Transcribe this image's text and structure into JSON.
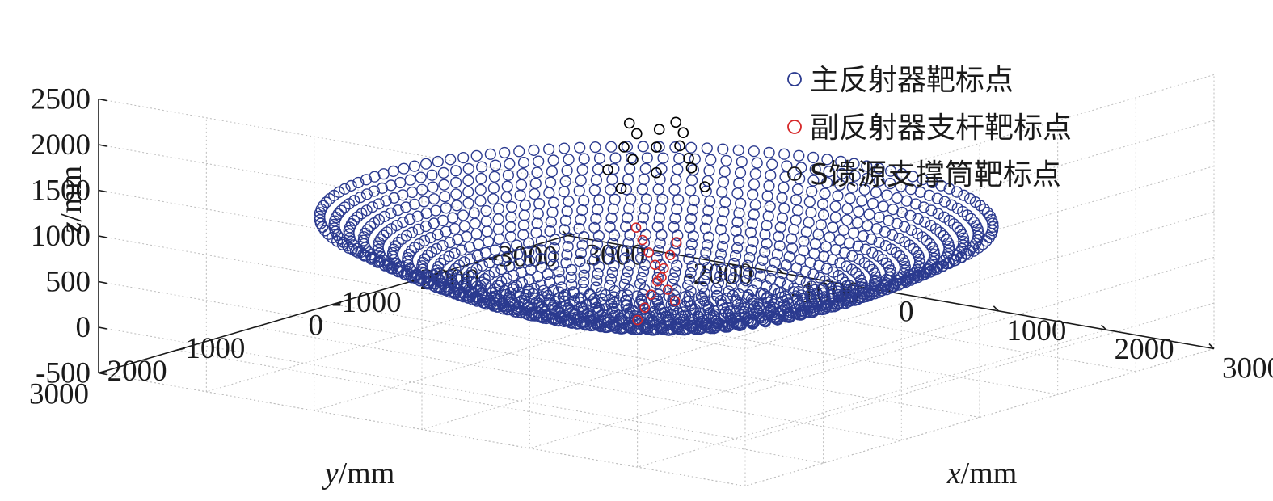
{
  "chart_data": {
    "type": "scatter3d",
    "xlabel": {
      "var": "x",
      "unit": "/mm"
    },
    "ylabel": {
      "var": "y",
      "unit": "/mm"
    },
    "zlabel": {
      "var": "z",
      "unit": "/mm"
    },
    "xlim": [
      -3000,
      3000
    ],
    "ylim": [
      -3000,
      3000
    ],
    "zlim": [
      -500,
      2500
    ],
    "x_ticks": [
      "-3000",
      "-2000",
      "-1000",
      "0",
      "1000",
      "2000",
      "3000"
    ],
    "y_ticks": [
      "-3000",
      "-2000",
      "-1000",
      "0",
      "1000",
      "2000",
      "3000"
    ],
    "z_ticks": [
      "-500",
      "0",
      "500",
      "1000",
      "1500",
      "2000",
      "2500"
    ],
    "grid": true,
    "legend_position": "top-right",
    "series": [
      {
        "name": "主反射器靶标点",
        "color": "#2b3a8f",
        "marker": "open-circle",
        "shape": "paraboloid-dish",
        "rim_radius": 2500,
        "vertex_z": 0,
        "rim_z": 1000,
        "rings": 23,
        "ring_spacing": 110
      },
      {
        "name": "副反射器支杆靶标点",
        "color": "#d62728",
        "marker": "open-circle",
        "points": [
          [
            -80,
            -350,
            50
          ],
          [
            -110,
            -300,
            180
          ],
          [
            -140,
            -260,
            320
          ],
          [
            -170,
            -220,
            460
          ],
          [
            -200,
            -180,
            600
          ],
          [
            -230,
            -140,
            740
          ],
          [
            -260,
            -100,
            880
          ],
          [
            80,
            350,
            50
          ],
          [
            110,
            300,
            180
          ],
          [
            140,
            260,
            320
          ],
          [
            170,
            220,
            460
          ],
          [
            200,
            180,
            600
          ],
          [
            230,
            140,
            740
          ],
          [
            260,
            100,
            880
          ]
        ]
      },
      {
        "name": "S馈源支撑筒靶标点",
        "color": "#000000",
        "marker": "open-circle",
        "points": [
          [
            -250,
            0,
            2050
          ],
          [
            0,
            -250,
            2050
          ],
          [
            250,
            0,
            2050
          ],
          [
            0,
            250,
            2050
          ],
          [
            100,
            100,
            2080
          ],
          [
            -300,
            0,
            1780
          ],
          [
            0,
            -300,
            1780
          ],
          [
            300,
            0,
            1780
          ],
          [
            0,
            300,
            1780
          ],
          [
            0,
            0,
            1840
          ],
          [
            -450,
            0,
            1500
          ],
          [
            0,
            -450,
            1500
          ],
          [
            450,
            0,
            1500
          ],
          [
            0,
            450,
            1500
          ],
          [
            0,
            0,
            1560
          ]
        ]
      }
    ]
  }
}
